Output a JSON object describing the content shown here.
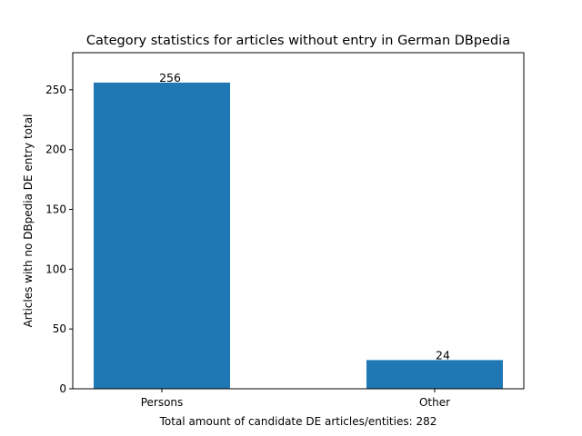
{
  "chart_data": {
    "type": "bar",
    "title": "Category statistics for articles without entry in German DBpedia",
    "xlabel": "Total amount of candidate DE articles/entities: 282",
    "ylabel": "Articles with no DBpedia DE entry total",
    "categories": [
      "Persons",
      "Other"
    ],
    "values": [
      256,
      24
    ],
    "data_labels": [
      "256",
      "24"
    ],
    "ylim": [
      0,
      281
    ],
    "yticks": [
      0,
      50,
      100,
      150,
      200,
      250
    ],
    "bar_color": "#1f77b4",
    "grid": false,
    "legend": "none"
  }
}
